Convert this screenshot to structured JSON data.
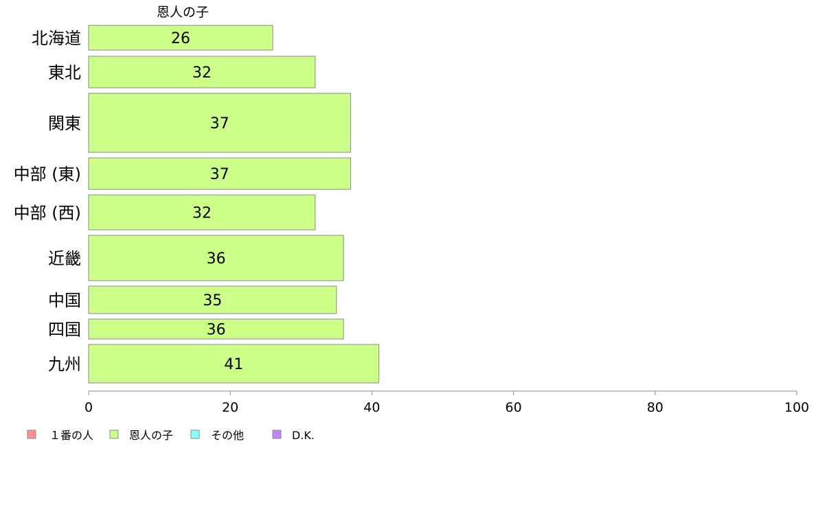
{
  "chart_data": {
    "type": "bar",
    "orientation": "horizontal",
    "series_title": "恩人の子",
    "categories": [
      "北海道",
      "東北",
      "関東",
      "中部 (東)",
      "中部 (西)",
      "近畿",
      "中国",
      "四国",
      "九州"
    ],
    "series": [
      {
        "name": "恩人の子",
        "values": [
          26,
          32,
          37,
          37,
          32,
          36,
          35,
          36,
          41
        ],
        "color": "#ccff88"
      }
    ],
    "xlim": [
      0,
      100
    ],
    "x_ticks": [
      0,
      20,
      40,
      60,
      80,
      100
    ],
    "legend": {
      "placement": "bottom-left",
      "entries": [
        {
          "label": "１番の人",
          "color": "#ff9090"
        },
        {
          "label": "恩人の子",
          "color": "#ccff88"
        },
        {
          "label": "その他",
          "color": "#88ffff"
        },
        {
          "label": "D.K.",
          "color": "#bb88ff"
        }
      ]
    },
    "grid": false
  }
}
